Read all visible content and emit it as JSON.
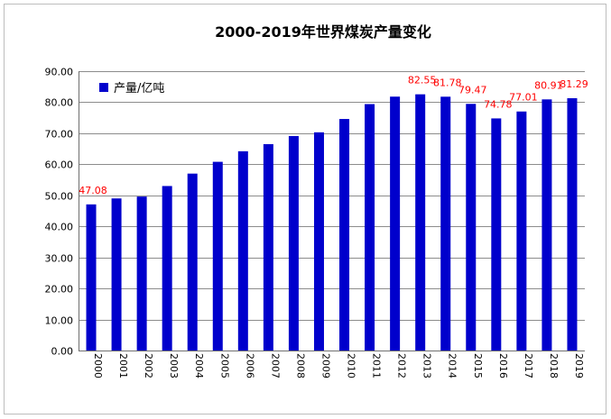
{
  "chart_data": {
    "type": "bar",
    "title": "2000-2019年世界煤炭产量变化",
    "xlabel": "",
    "ylabel": "",
    "categories": [
      "2000",
      "2001",
      "2002",
      "2003",
      "2004",
      "2005",
      "2006",
      "2007",
      "2008",
      "2009",
      "2010",
      "2011",
      "2012",
      "2013",
      "2014",
      "2015",
      "2016",
      "2017",
      "2018",
      "2019"
    ],
    "series": [
      {
        "name": "产量/亿吨",
        "color": "#0000cc",
        "values": [
          47.08,
          49.0,
          49.6,
          53.0,
          57.0,
          60.8,
          64.2,
          66.5,
          69.1,
          70.3,
          74.6,
          79.4,
          81.8,
          82.55,
          81.78,
          79.47,
          74.78,
          77.01,
          80.91,
          81.29
        ]
      }
    ],
    "data_labels": [
      {
        "index": 0,
        "text": "47.08"
      },
      {
        "index": 13,
        "text": "82.55"
      },
      {
        "index": 14,
        "text": "81.78"
      },
      {
        "index": 15,
        "text": "79.47"
      },
      {
        "index": 16,
        "text": "74.78"
      },
      {
        "index": 17,
        "text": "77.01"
      },
      {
        "index": 18,
        "text": "80.91"
      },
      {
        "index": 19,
        "text": "81.29"
      }
    ],
    "y_ticks": [
      "0.00",
      "10.00",
      "20.00",
      "30.00",
      "40.00",
      "50.00",
      "60.00",
      "70.00",
      "80.00",
      "90.00"
    ],
    "ylim": [
      0,
      90
    ],
    "grid": true,
    "legend_position": "top-left",
    "data_label_color": "#ff0000"
  }
}
